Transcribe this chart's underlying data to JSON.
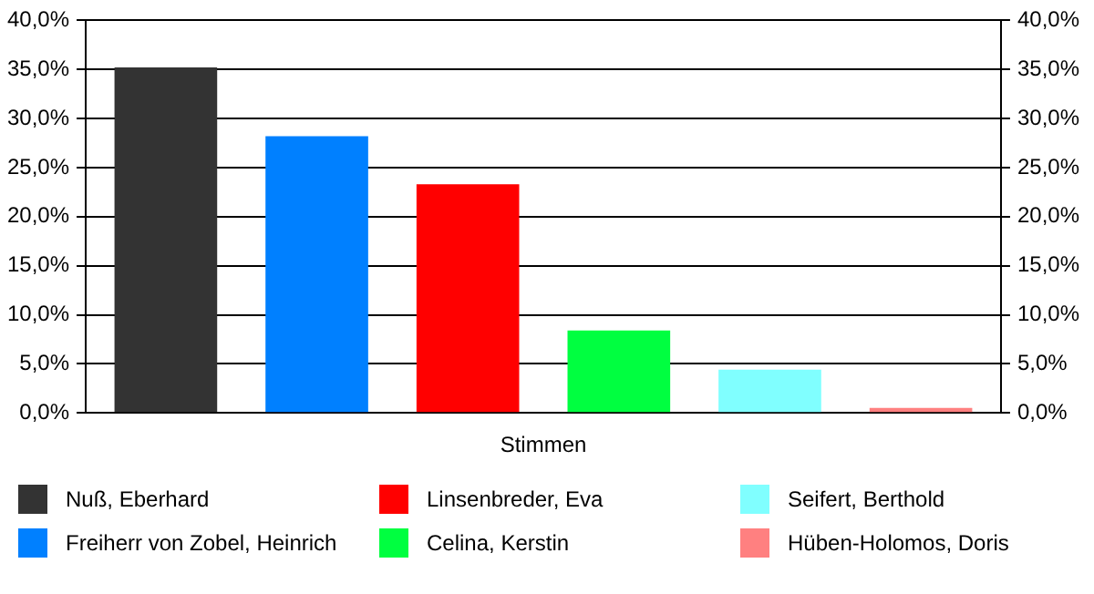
{
  "chart_data": {
    "type": "bar",
    "categories": [
      "Stimmen"
    ],
    "series": [
      {
        "name": "Nuß, Eberhard",
        "color": "#333333",
        "values": [
          35.2
        ]
      },
      {
        "name": "Freiherr von Zobel, Heinrich",
        "color": "#0080ff",
        "values": [
          28.2
        ]
      },
      {
        "name": "Linsenbreder, Eva",
        "color": "#ff0000",
        "values": [
          23.3
        ]
      },
      {
        "name": "Celina, Kerstin",
        "color": "#00ff40",
        "values": [
          8.4
        ]
      },
      {
        "name": "Seifert, Berthold",
        "color": "#80ffff",
        "values": [
          4.4
        ]
      },
      {
        "name": "Hüben-Holomos, Doris",
        "color": "#ff8080",
        "values": [
          0.5
        ]
      }
    ],
    "ylim": [
      0,
      40
    ],
    "yticks": [
      {
        "value": 0,
        "label": "0,0%"
      },
      {
        "value": 5,
        "label": "5,0%"
      },
      {
        "value": 10,
        "label": "10,0%"
      },
      {
        "value": 15,
        "label": "15,0%"
      },
      {
        "value": 20,
        "label": "20,0%"
      },
      {
        "value": 25,
        "label": "25,0%"
      },
      {
        "value": 30,
        "label": "30,0%"
      },
      {
        "value": 35,
        "label": "35,0%"
      },
      {
        "value": 40,
        "label": "40,0%"
      }
    ],
    "grid": "y",
    "legend": "bottom"
  }
}
